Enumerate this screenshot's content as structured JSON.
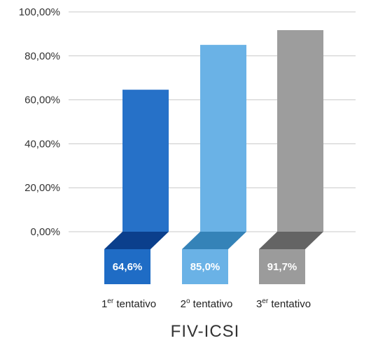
{
  "chart_data": {
    "type": "bar",
    "title": "",
    "xlabel": "FIV-ICSI",
    "ylabel": "",
    "ylim": [
      0,
      100
    ],
    "yticks": [
      "0,00%",
      "20,00%",
      "40,00%",
      "60,00%",
      "80,00%",
      "100,00%"
    ],
    "grid": true,
    "categories": [
      {
        "num": "1",
        "sup": "er",
        "word": "tentativo"
      },
      {
        "num": "2",
        "sup": "o",
        "word": "tentativo"
      },
      {
        "num": "3",
        "sup": "er",
        "word": "tentativo"
      }
    ],
    "values": [
      64.6,
      85.0,
      91.7
    ],
    "data_labels": [
      "64,6%",
      "85,0%",
      "91,7%"
    ],
    "colors": [
      {
        "face": "#2671c8",
        "top": "#0b3f8c",
        "base": "#1f6cc5"
      },
      {
        "face": "#6ab2e6",
        "top": "#3583b8",
        "base": "#6ab2e6"
      },
      {
        "face": "#9d9d9d",
        "top": "#646464",
        "base": "#9b9b9b"
      }
    ]
  }
}
